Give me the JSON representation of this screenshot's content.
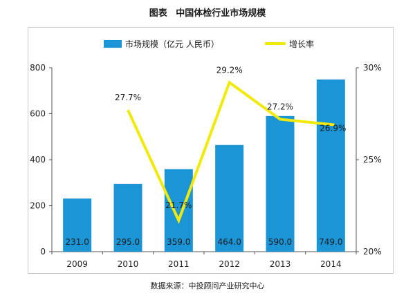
{
  "title": {
    "prefix": "图表",
    "text": "中国体检行业市场规模"
  },
  "source": "数据来源：中投顾问产业研究中心",
  "colors": {
    "bar": "#1b95d6",
    "line": "#f1ea09",
    "axis": "#555555"
  },
  "chart_data": {
    "type": "bar",
    "categories": [
      "2009",
      "2010",
      "2011",
      "2012",
      "2013",
      "2014"
    ],
    "series": [
      {
        "name": "市场规模（亿元 人民币）",
        "axis": "left",
        "kind": "bar",
        "values": [
          231.0,
          295.0,
          359.0,
          464.0,
          590.0,
          749.0
        ],
        "labels": [
          "231.0",
          "295.0",
          "359.0",
          "464.0",
          "590.0",
          "749.0"
        ]
      },
      {
        "name": "增长率",
        "axis": "right",
        "kind": "line",
        "values": [
          null,
          27.7,
          21.7,
          29.2,
          27.2,
          26.9
        ],
        "labels": [
          "",
          "27.7%",
          "21.7%",
          "29.2%",
          "27.2%",
          "26.9%"
        ]
      }
    ],
    "ylim": [
      0,
      800
    ],
    "yticks": [
      "0",
      "200",
      "400",
      "600",
      "800"
    ],
    "y2lim": [
      20,
      30
    ],
    "y2ticks": [
      "20%",
      "25%",
      "30%"
    ],
    "legend": "top"
  }
}
